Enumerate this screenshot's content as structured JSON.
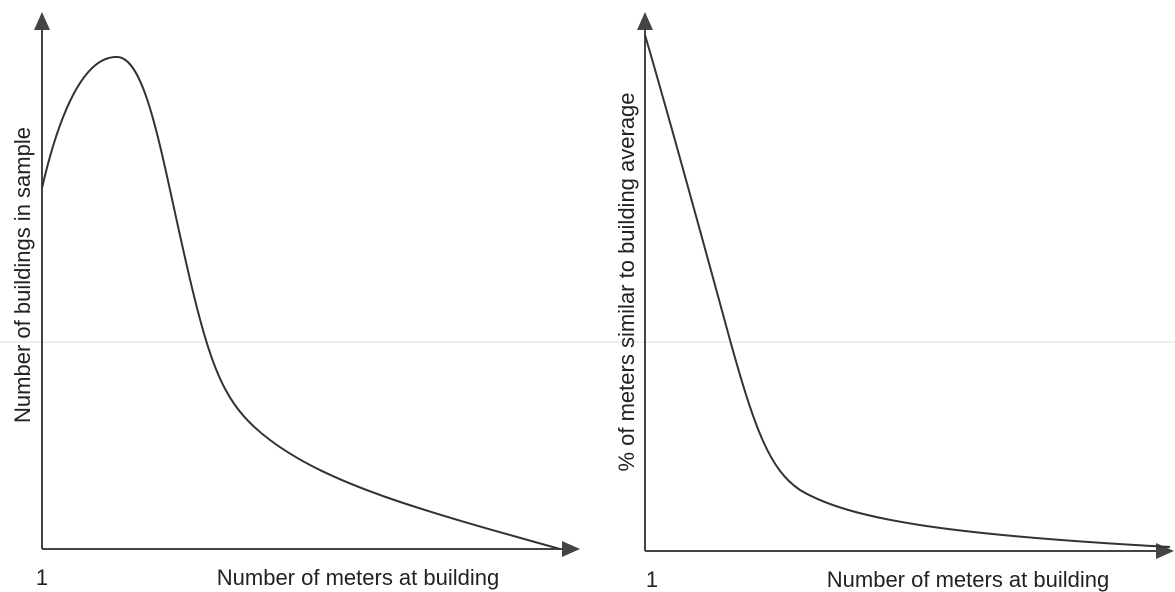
{
  "left_panel": {
    "y_axis_label": "Number of buildings in sample",
    "x_axis_label": "Number of meters at building",
    "x_origin_label": "1"
  },
  "right_panel": {
    "y_axis_label": "% of meters similar to building average",
    "x_axis_label": "Number of meters at building",
    "x_origin_label": "1"
  }
}
